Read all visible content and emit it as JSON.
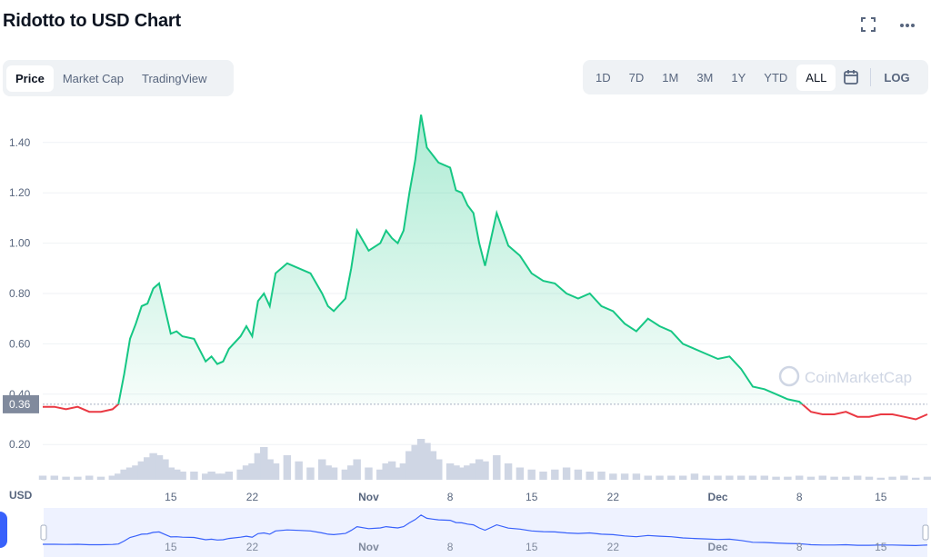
{
  "header": {
    "title": "Ridotto to USD Chart",
    "fullscreen_icon": "fullscreen-icon",
    "more_icon": "more-icon"
  },
  "tabs": [
    {
      "label": "Price",
      "active": true
    },
    {
      "label": "Market Cap",
      "active": false
    },
    {
      "label": "TradingView",
      "active": false
    }
  ],
  "ranges": [
    {
      "label": "1D",
      "active": false
    },
    {
      "label": "7D",
      "active": false
    },
    {
      "label": "1M",
      "active": false
    },
    {
      "label": "3M",
      "active": false
    },
    {
      "label": "1Y",
      "active": false
    },
    {
      "label": "YTD",
      "active": false
    },
    {
      "label": "ALL",
      "active": true
    }
  ],
  "log_label": "LOG",
  "calendar_icon": "calendar-icon",
  "watermark": "CoinMarketCap",
  "currency_label": "USD",
  "colors": {
    "up": "#16c784",
    "down": "#ea3943",
    "volume": "#cfd6e4",
    "navigator": "#3861fb"
  },
  "chart_data": {
    "type": "line",
    "title": "",
    "xlabel": "",
    "ylabel": "USD",
    "ylim": [
      0.06,
      1.54
    ],
    "y_ticks": [
      0.2,
      0.4,
      0.6,
      0.8,
      1.0,
      1.2,
      1.4
    ],
    "y_tick_labels": [
      "0.20",
      "0.40",
      "0.60",
      "0.80",
      "1.00",
      "1.20",
      "1.40"
    ],
    "reference_price": 0.36,
    "reference_label": "0.36",
    "x_tick_labels": [
      "15",
      "22",
      "Nov",
      "8",
      "15",
      "22",
      "Dec",
      "8",
      "15"
    ],
    "x_tick_days": [
      15,
      22,
      32,
      39,
      46,
      53,
      62,
      69,
      76
    ],
    "x_range": [
      4,
      80
    ],
    "x": [
      4,
      5,
      6,
      7,
      8,
      9,
      10,
      10.5,
      11,
      11.5,
      12,
      12.5,
      13,
      13.5,
      14,
      14.5,
      15,
      15.5,
      16,
      17,
      18,
      18.5,
      19,
      19.5,
      20,
      21,
      21.5,
      22,
      22.5,
      23,
      23.5,
      24,
      25,
      26,
      27,
      28,
      28.5,
      29,
      30,
      30.5,
      31,
      32,
      33,
      33.5,
      34,
      34.5,
      35,
      35.5,
      36,
      36.5,
      37,
      37.5,
      38,
      39,
      39.5,
      40,
      40.5,
      41,
      41.5,
      42,
      43,
      44,
      45,
      46,
      47,
      48,
      49,
      50,
      51,
      52,
      53,
      54,
      55,
      56,
      57,
      58,
      59,
      60,
      61,
      62,
      63,
      64,
      65,
      66,
      67,
      68,
      69,
      70,
      71,
      72,
      73,
      74,
      75,
      76,
      77,
      78,
      79,
      80
    ],
    "series": [
      {
        "values": [
          0.35,
          0.35,
          0.34,
          0.35,
          0.33,
          0.33,
          0.34,
          0.36,
          0.48,
          0.62,
          0.68,
          0.75,
          0.76,
          0.82,
          0.84,
          0.74,
          0.64,
          0.65,
          0.63,
          0.62,
          0.53,
          0.55,
          0.52,
          0.53,
          0.58,
          0.63,
          0.67,
          0.63,
          0.77,
          0.8,
          0.75,
          0.88,
          0.92,
          0.9,
          0.88,
          0.8,
          0.75,
          0.73,
          0.78,
          0.9,
          1.05,
          0.97,
          1.0,
          1.05,
          1.02,
          1.0,
          1.05,
          1.2,
          1.33,
          1.51,
          1.38,
          1.35,
          1.32,
          1.3,
          1.21,
          1.2,
          1.15,
          1.12,
          1.0,
          0.91,
          1.12,
          0.99,
          0.95,
          0.88,
          0.85,
          0.84,
          0.8,
          0.78,
          0.8,
          0.75,
          0.73,
          0.68,
          0.65,
          0.7,
          0.67,
          0.65,
          0.6,
          0.58,
          0.56,
          0.54,
          0.55,
          0.5,
          0.43,
          0.42,
          0.4,
          0.38,
          0.37,
          0.33,
          0.32,
          0.32,
          0.33,
          0.31,
          0.31,
          0.32,
          0.32,
          0.31,
          0.3,
          0.32
        ]
      }
    ],
    "volume": [
      2,
      2,
      1.5,
      1.5,
      2,
      1.5,
      2,
      3,
      5,
      6,
      7,
      9,
      11,
      13,
      12,
      10,
      6,
      5,
      4,
      4,
      3,
      4,
      3,
      3,
      4,
      5,
      7,
      8,
      13,
      16,
      10,
      8,
      12,
      9,
      6,
      10,
      7,
      6,
      5,
      7,
      10,
      6,
      5,
      8,
      9,
      6,
      8,
      14,
      17,
      20,
      18,
      14,
      10,
      8,
      7,
      6,
      7,
      8,
      10,
      9,
      12,
      8,
      6,
      5,
      4,
      5,
      6,
      5,
      4,
      4,
      3,
      3,
      3,
      2,
      2,
      2,
      2,
      3,
      2,
      2,
      2,
      2,
      2,
      2,
      1.5,
      1.5,
      2,
      1.5,
      2,
      1.5,
      1.5,
      2,
      1.5,
      1,
      1.5,
      2,
      1,
      1.5
    ],
    "grid": true,
    "legend": "none"
  }
}
